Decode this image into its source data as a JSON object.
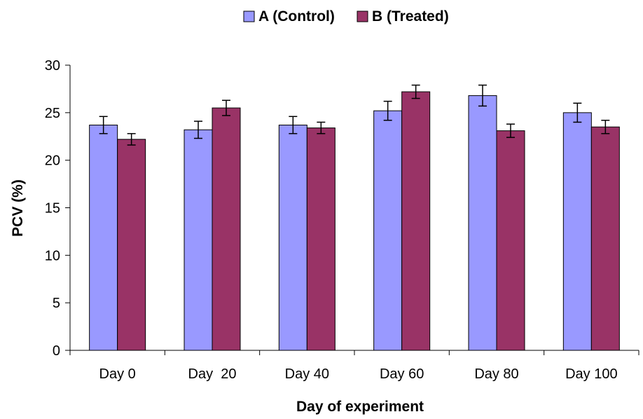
{
  "chart_data": {
    "type": "bar",
    "categories": [
      "Day 0",
      "Day  20",
      "Day 40",
      "Day 60",
      "Day 80",
      "Day 100"
    ],
    "series": [
      {
        "name": "A (Control)",
        "color": "#9999ff",
        "values": [
          23.7,
          23.2,
          23.7,
          25.2,
          26.8,
          25.0
        ],
        "errors": [
          0.9,
          0.9,
          0.9,
          1.0,
          1.1,
          1.0
        ]
      },
      {
        "name": "B (Treated)",
        "color": "#993366",
        "values": [
          22.2,
          25.5,
          23.4,
          27.2,
          23.1,
          23.5
        ],
        "errors": [
          0.6,
          0.8,
          0.6,
          0.7,
          0.7,
          0.7
        ]
      }
    ],
    "xlabel": "Day of experiment",
    "ylabel": "PCV (%)",
    "ylim": [
      0,
      30
    ],
    "yticks": [
      0,
      5,
      10,
      15,
      20,
      25,
      30
    ],
    "legend_position": "top-center",
    "grid": false
  }
}
